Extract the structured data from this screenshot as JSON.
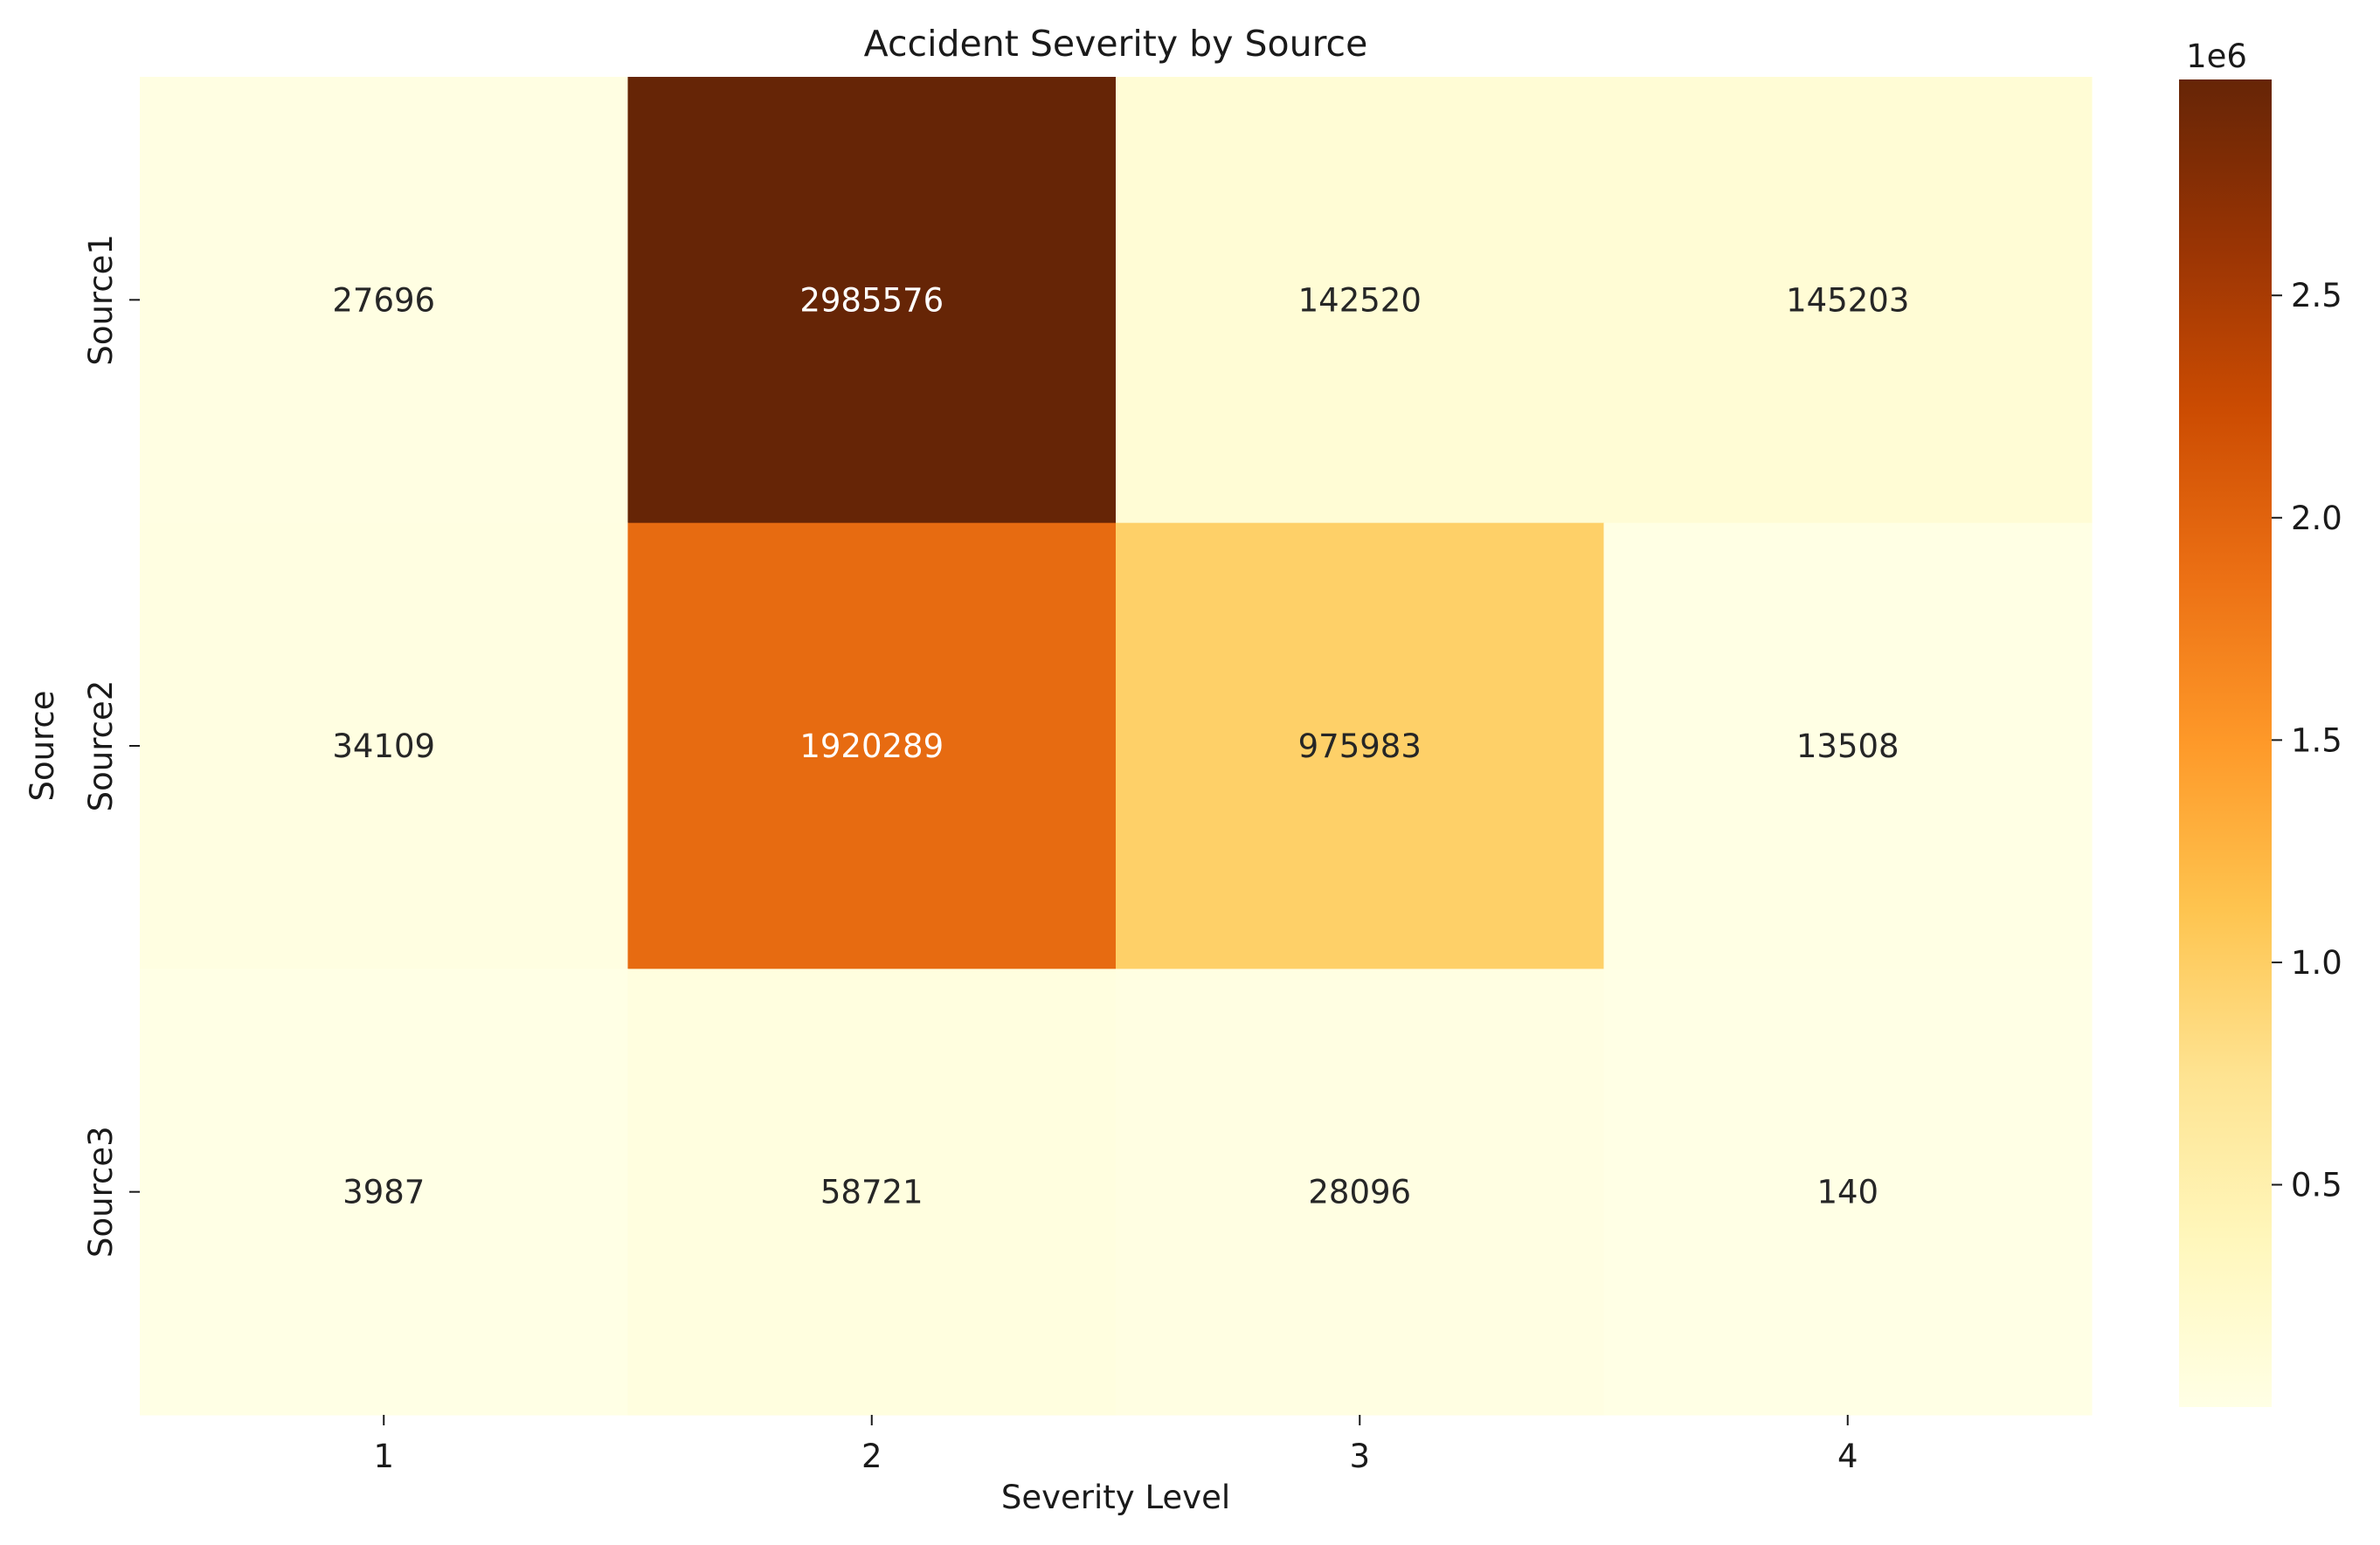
{
  "chart_data": {
    "type": "heatmap",
    "title": "Accident Severity by Source",
    "xlabel": "Severity Level",
    "ylabel": "Source",
    "x_categories": [
      "1",
      "2",
      "3",
      "4"
    ],
    "y_categories": [
      "Source1",
      "Source2",
      "Source3"
    ],
    "values": [
      [
        27696,
        2985576,
        142520,
        145203
      ],
      [
        34109,
        1920289,
        975983,
        13508
      ],
      [
        3987,
        58721,
        28096,
        140
      ]
    ],
    "colormap": "YlOrBr",
    "colorbar": {
      "range": [
        140,
        2985576
      ],
      "ticks": [
        500000,
        1000000,
        1500000,
        2000000,
        2500000
      ],
      "tick_labels": [
        "0.5",
        "1.0",
        "1.5",
        "2.0",
        "2.5"
      ],
      "scale_label": "1e6"
    },
    "colormap_colors": [
      "#ffffe5",
      "#fff7bc",
      "#fee391",
      "#fec44f",
      "#fe9929",
      "#ec7014",
      "#cc4c02",
      "#993404",
      "#662506"
    ]
  }
}
